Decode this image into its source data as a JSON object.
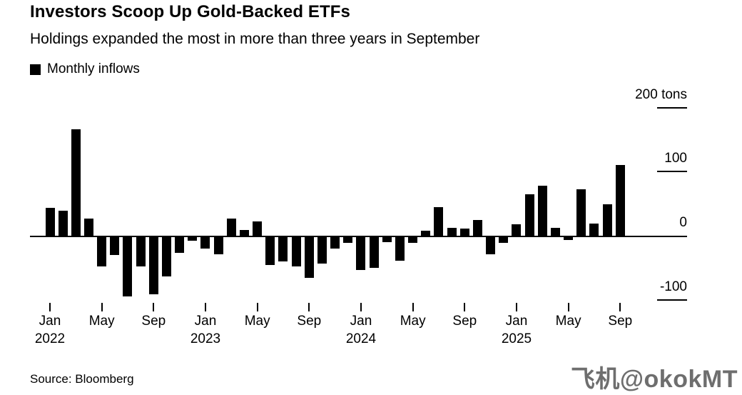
{
  "header": {
    "title": "Investors Scoop Up Gold-Backed ETFs",
    "subtitle": "Holdings expanded the most in more than three years in September"
  },
  "legend": {
    "label": "Monthly inflows",
    "swatch_color": "#000000"
  },
  "chart_data": {
    "type": "bar",
    "title": "Investors Scoop Up Gold-Backed ETFs",
    "subtitle": "Holdings expanded the most in more than three years in September",
    "series_name": "Monthly inflows",
    "unit": "tons",
    "bar_color": "#000000",
    "grid": false,
    "axis_side": "right",
    "ylim": [
      -130,
      210
    ],
    "categories": [
      "Jan 2022",
      "Feb 2022",
      "Mar 2022",
      "Apr 2022",
      "May 2022",
      "Jun 2022",
      "Jul 2022",
      "Aug 2022",
      "Sep 2022",
      "Oct 2022",
      "Nov 2022",
      "Dec 2022",
      "Jan 2023",
      "Feb 2023",
      "Mar 2023",
      "Apr 2023",
      "May 2023",
      "Jun 2023",
      "Jul 2023",
      "Aug 2023",
      "Sep 2023",
      "Oct 2023",
      "Nov 2023",
      "Dec 2023",
      "Jan 2024",
      "Feb 2024",
      "Mar 2024",
      "Apr 2024",
      "May 2024",
      "Jun 2024",
      "Jul 2024",
      "Aug 2024",
      "Sep 2024",
      "Oct 2024",
      "Nov 2024",
      "Dec 2024",
      "Jan 2025",
      "Feb 2025",
      "Mar 2025",
      "Apr 2025",
      "May 2025",
      "Jun 2025",
      "Jul 2025",
      "Aug 2025",
      "Sep 2025"
    ],
    "values": [
      43,
      39,
      166,
      27,
      -46,
      -28,
      -93,
      -46,
      -90,
      -62,
      -25,
      -6,
      -18,
      -27,
      27,
      9,
      22,
      -44,
      -39,
      -46,
      -64,
      -42,
      -18,
      -10,
      -52,
      -48,
      -8,
      -37,
      -9,
      8,
      45,
      12,
      11,
      24,
      -27,
      -9,
      18,
      65,
      78,
      12,
      -5,
      73,
      19,
      49,
      110
    ],
    "yticks": [
      {
        "value": 200,
        "label": "200 tons"
      },
      {
        "value": 100,
        "label": "100"
      },
      {
        "value": 0,
        "label": "0"
      },
      {
        "value": -100,
        "label": "-100"
      }
    ],
    "xticks": [
      {
        "index": 0,
        "month": "Jan",
        "year": "2022"
      },
      {
        "index": 4,
        "month": "May",
        "year": ""
      },
      {
        "index": 8,
        "month": "Sep",
        "year": ""
      },
      {
        "index": 12,
        "month": "Jan",
        "year": "2023"
      },
      {
        "index": 16,
        "month": "May",
        "year": ""
      },
      {
        "index": 20,
        "month": "Sep",
        "year": ""
      },
      {
        "index": 24,
        "month": "Jan",
        "year": "2024"
      },
      {
        "index": 28,
        "month": "May",
        "year": ""
      },
      {
        "index": 32,
        "month": "Sep",
        "year": ""
      },
      {
        "index": 36,
        "month": "Jan",
        "year": "2025"
      },
      {
        "index": 40,
        "month": "May",
        "year": ""
      },
      {
        "index": 44,
        "month": "Sep",
        "year": ""
      }
    ]
  },
  "footer": {
    "source": "Source: Bloomberg",
    "watermark": "飞机@okokMT"
  }
}
